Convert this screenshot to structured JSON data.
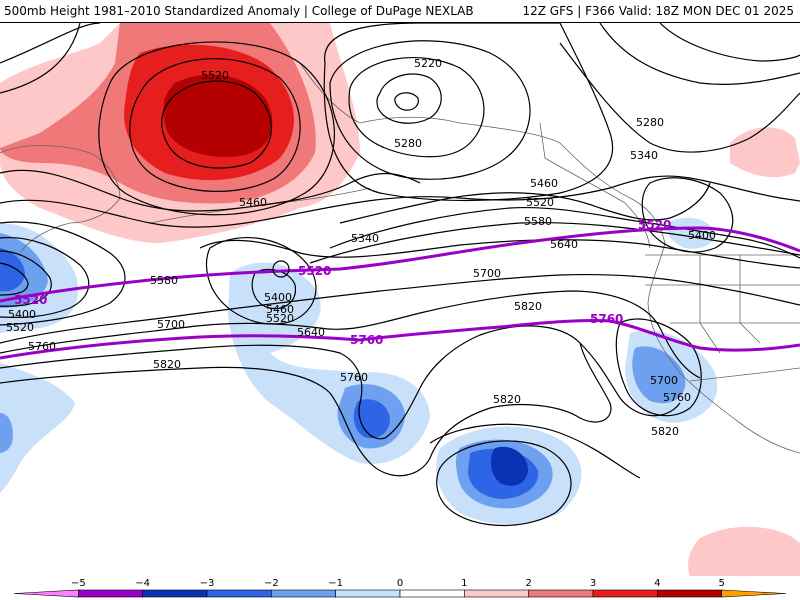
{
  "header": {
    "title_left": "500mb Height 1981–2010 Standardized Anomaly | College of DuPage NEXLAB",
    "title_right": "12Z GFS | F366 Valid: 18Z MON DEC 01 2025"
  },
  "contour_labels": {
    "c5520_top": "5520",
    "c5220": "5220",
    "c5280_a": "5280",
    "c5280_b": "5280",
    "c5340_a": "5340",
    "c5340_b": "5340",
    "c5460_a": "5460",
    "c5460_b": "5460",
    "c5520_mid": "5520",
    "c5580_a": "5580",
    "c5580_b": "5580",
    "c5640_a": "5640",
    "c5640_b": "5640",
    "c5700_a": "5700",
    "c5700_b": "5700",
    "c5700_c": "5700",
    "c5820_a": "5820",
    "c5820_b": "5820",
    "c5820_c": "5820",
    "c5820_d": "5820",
    "c5760_a": "5760",
    "c5760_b": "5760",
    "c5760_c": "5760",
    "c5400_a": "5400",
    "c5400_b": "5400",
    "c5400_c": "5400",
    "c5460_c": "5460",
    "c5520_c": "5520",
    "c5520_d": "5520"
  },
  "purple_labels": {
    "p5520_left": "5520",
    "p5520_mid": "5520",
    "p5520_right": "5520",
    "p5760_mid": "5760",
    "p5760_right": "5760"
  },
  "legend": {
    "ticks": [
      "−5",
      "−4",
      "−3",
      "−2",
      "−1",
      "0",
      "1",
      "2",
      "3",
      "4",
      "5"
    ],
    "colors": [
      "#ff80ff",
      "#9a00c8",
      "#0a32b4",
      "#2e64e6",
      "#6ea0f0",
      "#c8e0fa",
      "#ffffff",
      "#ffc8c8",
      "#f07878",
      "#e61e1e",
      "#b40000",
      "#ffa000"
    ]
  },
  "colors": {
    "purple_contour": "#9a00c8",
    "neg_light": "#c8e0fa",
    "neg_mid": "#6ea0f0",
    "neg_strong": "#2e64e6",
    "neg_deep": "#0a32b4",
    "pos_light": "#ffc8c8",
    "pos_mid": "#f07878",
    "pos_strong": "#e61e1e",
    "pos_deep": "#b40000"
  }
}
